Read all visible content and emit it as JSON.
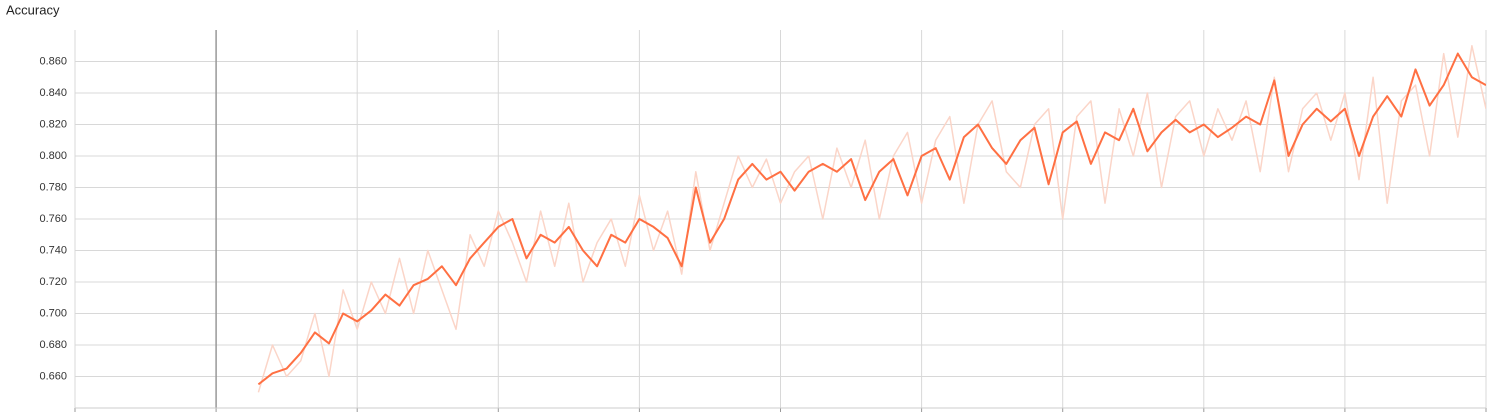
{
  "chart_data": {
    "type": "line",
    "title": "Accuracy",
    "x": [
      0.3,
      0.4,
      0.5,
      0.6,
      0.7,
      0.8,
      0.9,
      1.0,
      1.1,
      1.2,
      1.3,
      1.4,
      1.5,
      1.6,
      1.7,
      1.8,
      1.9,
      2.0,
      2.1,
      2.2,
      2.3,
      2.4,
      2.5,
      2.6,
      2.7,
      2.8,
      2.9,
      3.0,
      3.1,
      3.2,
      3.3,
      3.4,
      3.5,
      3.6,
      3.7,
      3.8,
      3.9,
      4.0,
      4.1,
      4.2,
      4.3,
      4.4,
      4.5,
      4.6,
      4.7,
      4.8,
      4.9,
      5.0,
      5.1,
      5.2,
      5.3,
      5.4,
      5.5,
      5.6,
      5.7,
      5.8,
      5.9,
      6.0,
      6.1,
      6.2,
      6.3,
      6.4,
      6.5,
      6.6,
      6.7,
      6.8,
      6.9,
      7.0,
      7.1,
      7.2,
      7.3,
      7.4,
      7.5,
      7.6,
      7.7,
      7.8,
      7.9,
      8.0,
      8.1,
      8.2,
      8.3,
      8.4,
      8.5,
      8.6,
      8.7,
      8.8,
      8.9,
      9.0
    ],
    "series": [
      {
        "color": "#fbd5c8",
        "values": [
          0.65,
          0.68,
          0.66,
          0.67,
          0.7,
          0.66,
          0.715,
          0.69,
          0.72,
          0.7,
          0.735,
          0.7,
          0.74,
          0.715,
          0.69,
          0.75,
          0.73,
          0.765,
          0.745,
          0.72,
          0.765,
          0.73,
          0.77,
          0.72,
          0.745,
          0.76,
          0.73,
          0.775,
          0.74,
          0.765,
          0.725,
          0.79,
          0.74,
          0.77,
          0.8,
          0.78,
          0.798,
          0.77,
          0.79,
          0.8,
          0.76,
          0.805,
          0.78,
          0.81,
          0.76,
          0.8,
          0.815,
          0.77,
          0.81,
          0.825,
          0.77,
          0.82,
          0.835,
          0.79,
          0.78,
          0.82,
          0.83,
          0.76,
          0.825,
          0.835,
          0.77,
          0.83,
          0.8,
          0.84,
          0.78,
          0.825,
          0.835,
          0.8,
          0.83,
          0.81,
          0.835,
          0.79,
          0.85,
          0.79,
          0.83,
          0.84,
          0.81,
          0.84,
          0.785,
          0.85,
          0.77,
          0.835,
          0.845,
          0.8,
          0.865,
          0.812,
          0.87,
          0.83
        ]
      },
      {
        "color": "#ff7043",
        "values": [
          0.655,
          0.662,
          0.665,
          0.675,
          0.688,
          0.681,
          0.7,
          0.695,
          0.702,
          0.712,
          0.705,
          0.718,
          0.722,
          0.73,
          0.718,
          0.735,
          0.745,
          0.755,
          0.76,
          0.735,
          0.75,
          0.745,
          0.755,
          0.74,
          0.73,
          0.75,
          0.745,
          0.76,
          0.755,
          0.748,
          0.73,
          0.78,
          0.745,
          0.76,
          0.785,
          0.795,
          0.785,
          0.79,
          0.778,
          0.79,
          0.795,
          0.79,
          0.798,
          0.772,
          0.79,
          0.798,
          0.775,
          0.8,
          0.805,
          0.785,
          0.812,
          0.82,
          0.805,
          0.795,
          0.81,
          0.818,
          0.782,
          0.815,
          0.822,
          0.795,
          0.815,
          0.81,
          0.83,
          0.803,
          0.815,
          0.823,
          0.815,
          0.82,
          0.812,
          0.818,
          0.825,
          0.82,
          0.848,
          0.8,
          0.82,
          0.83,
          0.822,
          0.83,
          0.8,
          0.825,
          0.838,
          0.825,
          0.855,
          0.832,
          0.845,
          0.865,
          0.85,
          0.845
        ]
      }
    ],
    "xlim": [
      -1,
      9
    ],
    "xticks": [
      -1,
      0,
      1,
      2,
      3,
      4,
      5,
      6,
      7,
      8,
      9
    ],
    "ylim": [
      0.64,
      0.88
    ],
    "yticks": [
      {
        "value": 0.66,
        "label": "0.660"
      },
      {
        "value": 0.68,
        "label": "0.680"
      },
      {
        "value": 0.7,
        "label": "0.700"
      },
      {
        "value": 0.72,
        "label": "0.720"
      },
      {
        "value": 0.74,
        "label": "0.740"
      },
      {
        "value": 0.76,
        "label": "0.760"
      },
      {
        "value": 0.78,
        "label": "0.780"
      },
      {
        "value": 0.8,
        "label": "0.800"
      },
      {
        "value": 0.82,
        "label": "0.820"
      },
      {
        "value": 0.84,
        "label": "0.840"
      },
      {
        "value": 0.86,
        "label": "0.860"
      }
    ],
    "grid": true
  }
}
